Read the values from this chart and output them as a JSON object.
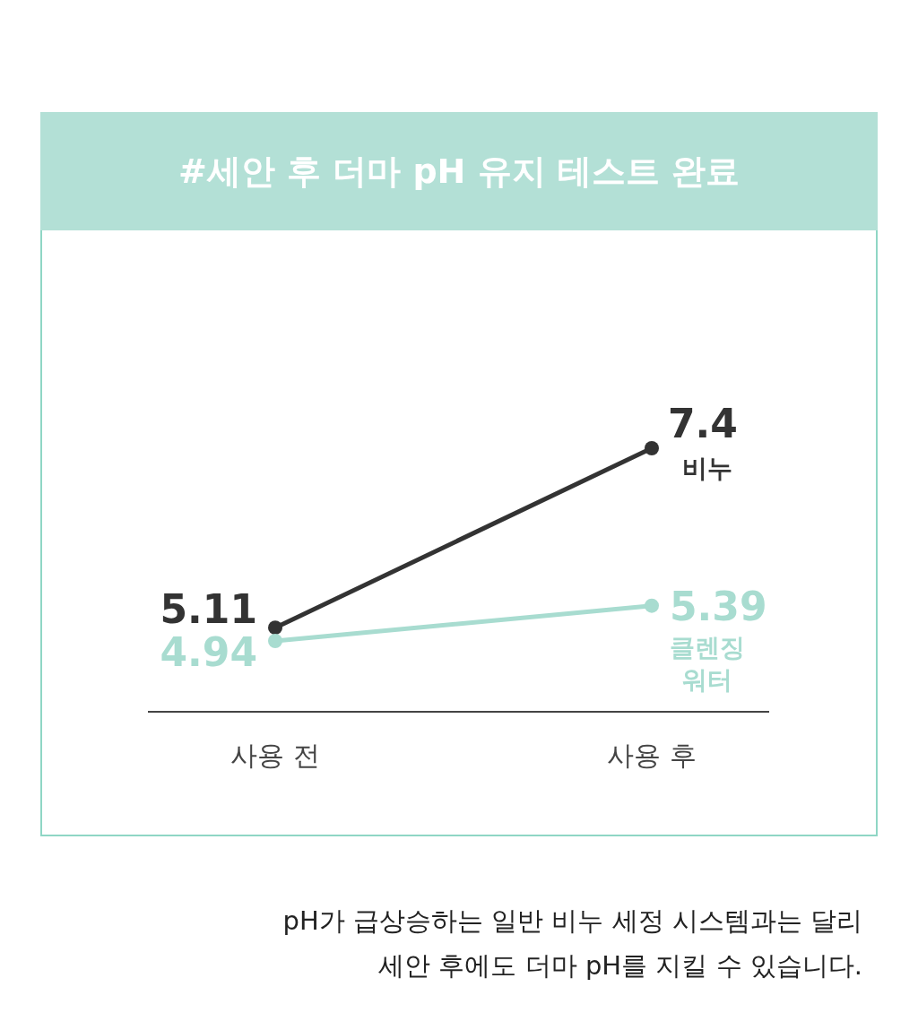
{
  "chart_data": {
    "type": "line",
    "title": "#세안 후 더마 pH 유지 테스트 완료",
    "categories": [
      "사용 전",
      "사용 후"
    ],
    "series": [
      {
        "name": "비누",
        "color": "#333333",
        "values": [
          5.11,
          7.4
        ]
      },
      {
        "name": "클렌징 워터",
        "color": "#a8dcd0",
        "values": [
          4.94,
          5.39
        ]
      }
    ],
    "data_labels": true,
    "marker": "circle",
    "annotations": [
      "pH가 급상승하는 일반 비누 세정 시스템과는 달리",
      "세안 후에도 더마 pH를 지킬 수 있습니다."
    ]
  }
}
